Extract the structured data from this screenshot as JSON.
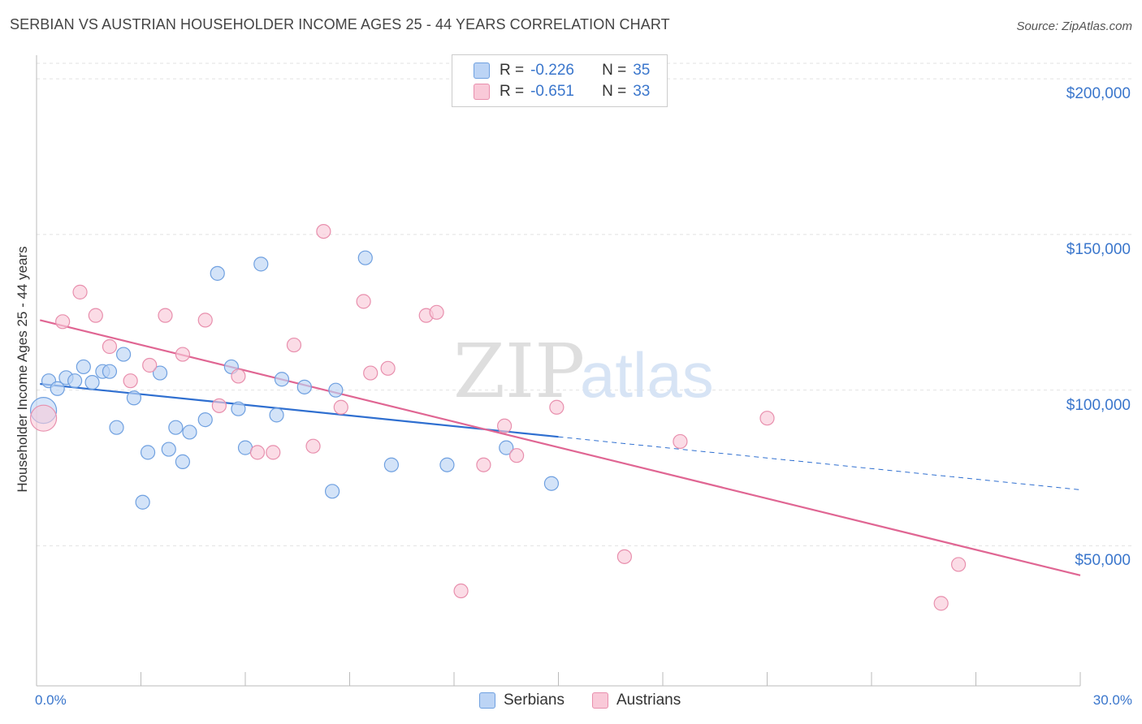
{
  "title": "SERBIAN VS AUSTRIAN HOUSEHOLDER INCOME AGES 25 - 44 YEARS CORRELATION CHART",
  "source": "Source: ZipAtlas.com",
  "watermark": {
    "zip": "ZIP",
    "atlas": "atlas"
  },
  "legend": {
    "rows": [
      {
        "r_label": "R =",
        "r_value": "-0.226",
        "n_label": "N =",
        "n_value": "35",
        "fill": "#bcd4f5",
        "stroke": "#6fa0e0"
      },
      {
        "r_label": "R =",
        "r_value": "-0.651",
        "n_label": "N =",
        "n_value": "33",
        "fill": "#f9c9d8",
        "stroke": "#e88fad"
      }
    ]
  },
  "bottom_legend": [
    {
      "label": "Serbians",
      "fill": "#bcd4f5",
      "stroke": "#6fa0e0"
    },
    {
      "label": "Austrians",
      "fill": "#f9c9d8",
      "stroke": "#e88fad"
    }
  ],
  "x_labels": {
    "left": "0.0%",
    "right": "30.0%"
  },
  "y_ticks": [
    {
      "label": "$200,000",
      "value": 200000
    },
    {
      "label": "$150,000",
      "value": 150000
    },
    {
      "label": "$100,000",
      "value": 100000
    },
    {
      "label": "$50,000",
      "value": 50000
    }
  ],
  "chart_data": {
    "type": "scatter",
    "title": "SERBIAN VS AUSTRIAN HOUSEHOLDER INCOME AGES 25 - 44 YEARS CORRELATION CHART",
    "xlabel": "",
    "ylabel": "Householder Income Ages 25 - 44 years",
    "xlim": [
      0,
      30
    ],
    "ylim": [
      5000,
      205000
    ],
    "x_unit": "%",
    "grid": true,
    "legend_position": "top-center",
    "series": [
      {
        "name": "Serbians",
        "color": "#6fa0e0",
        "fill": "#bcd4f5",
        "trend": {
          "x": [
            0.1,
            15
          ],
          "y": [
            102000,
            85000
          ],
          "dashed_to": [
            30,
            68000
          ],
          "color": "#2f6fd0"
        },
        "points": [
          {
            "x": 0.2,
            "y": 93500,
            "big": true
          },
          {
            "x": 0.35,
            "y": 103000
          },
          {
            "x": 0.6,
            "y": 100500
          },
          {
            "x": 0.85,
            "y": 104000
          },
          {
            "x": 1.1,
            "y": 103000
          },
          {
            "x": 1.35,
            "y": 107500
          },
          {
            "x": 1.6,
            "y": 102500
          },
          {
            "x": 1.9,
            "y": 106000
          },
          {
            "x": 2.1,
            "y": 106000
          },
          {
            "x": 2.3,
            "y": 88000
          },
          {
            "x": 2.5,
            "y": 111500
          },
          {
            "x": 2.8,
            "y": 97500
          },
          {
            "x": 3.05,
            "y": 64000
          },
          {
            "x": 3.2,
            "y": 80000
          },
          {
            "x": 3.55,
            "y": 105500
          },
          {
            "x": 3.8,
            "y": 81000
          },
          {
            "x": 4.0,
            "y": 88000
          },
          {
            "x": 4.2,
            "y": 77000
          },
          {
            "x": 4.4,
            "y": 86500
          },
          {
            "x": 4.85,
            "y": 90500
          },
          {
            "x": 5.2,
            "y": 137500
          },
          {
            "x": 5.6,
            "y": 107500
          },
          {
            "x": 5.8,
            "y": 94000
          },
          {
            "x": 6.0,
            "y": 81500
          },
          {
            "x": 6.45,
            "y": 140500
          },
          {
            "x": 6.9,
            "y": 92000
          },
          {
            "x": 7.05,
            "y": 103500
          },
          {
            "x": 7.7,
            "y": 101000
          },
          {
            "x": 8.5,
            "y": 67500
          },
          {
            "x": 8.6,
            "y": 100000
          },
          {
            "x": 9.45,
            "y": 142500
          },
          {
            "x": 10.2,
            "y": 76000
          },
          {
            "x": 11.8,
            "y": 76000
          },
          {
            "x": 13.5,
            "y": 81500
          },
          {
            "x": 14.8,
            "y": 70000
          }
        ]
      },
      {
        "name": "Austrians",
        "color": "#e88fad",
        "fill": "#f9c9d8",
        "trend": {
          "x": [
            0.1,
            30
          ],
          "y": [
            122500,
            40500
          ],
          "color": "#e06693"
        },
        "points": [
          {
            "x": 0.2,
            "y": 91000,
            "big": true
          },
          {
            "x": 0.75,
            "y": 122000
          },
          {
            "x": 1.25,
            "y": 131500
          },
          {
            "x": 1.7,
            "y": 124000
          },
          {
            "x": 2.1,
            "y": 114000
          },
          {
            "x": 2.7,
            "y": 103000
          },
          {
            "x": 3.25,
            "y": 108000
          },
          {
            "x": 3.7,
            "y": 124000
          },
          {
            "x": 4.2,
            "y": 111500
          },
          {
            "x": 4.85,
            "y": 122500
          },
          {
            "x": 5.25,
            "y": 95000
          },
          {
            "x": 5.8,
            "y": 104500
          },
          {
            "x": 6.35,
            "y": 80000
          },
          {
            "x": 6.8,
            "y": 80000
          },
          {
            "x": 7.4,
            "y": 114500
          },
          {
            "x": 7.95,
            "y": 82000
          },
          {
            "x": 8.25,
            "y": 151000
          },
          {
            "x": 8.75,
            "y": 94500
          },
          {
            "x": 9.4,
            "y": 128500
          },
          {
            "x": 9.6,
            "y": 105500
          },
          {
            "x": 10.1,
            "y": 107000
          },
          {
            "x": 11.2,
            "y": 124000
          },
          {
            "x": 11.5,
            "y": 125000
          },
          {
            "x": 12.2,
            "y": 35500
          },
          {
            "x": 12.85,
            "y": 76000
          },
          {
            "x": 13.45,
            "y": 88500
          },
          {
            "x": 13.8,
            "y": 79000
          },
          {
            "x": 14.95,
            "y": 94500
          },
          {
            "x": 16.9,
            "y": 46500
          },
          {
            "x": 18.5,
            "y": 83500
          },
          {
            "x": 21.0,
            "y": 91000
          },
          {
            "x": 26.0,
            "y": 31500
          },
          {
            "x": 26.5,
            "y": 44000
          }
        ]
      }
    ]
  }
}
